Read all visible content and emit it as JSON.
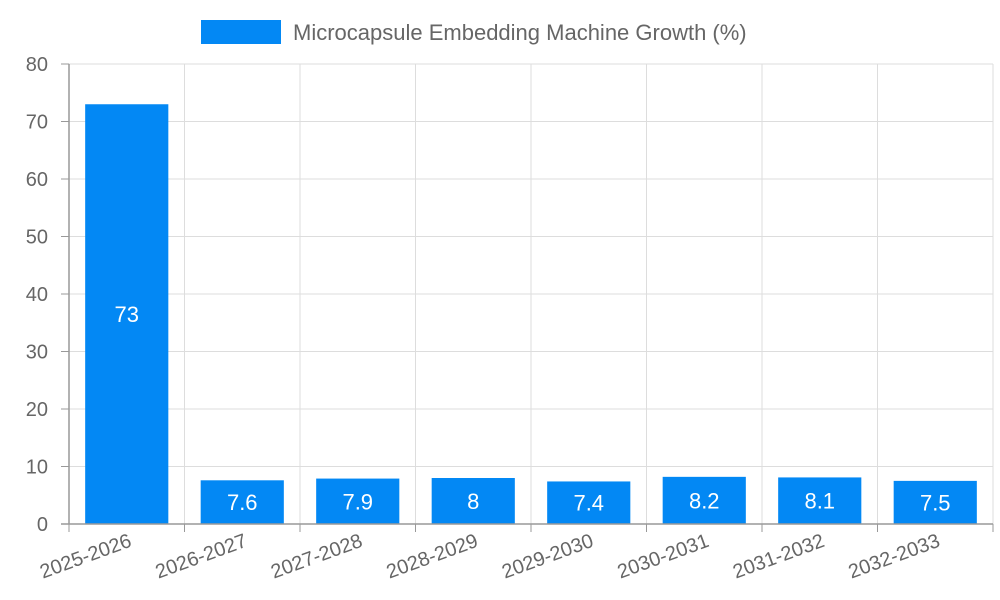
{
  "chart_data": {
    "type": "bar",
    "categories": [
      "2025-2026",
      "2026-2027",
      "2027-2028",
      "2028-2029",
      "2029-2030",
      "2030-2031",
      "2031-2032",
      "2032-2033"
    ],
    "series": [
      {
        "name": "Microcapsule Embedding Machine Growth (%)",
        "values": [
          73,
          7.6,
          7.9,
          8,
          7.4,
          8.2,
          8.1,
          7.5
        ],
        "color": "#0388f4"
      }
    ],
    "value_labels": [
      "73",
      "7.6",
      "7.9",
      "8",
      "7.4",
      "8.2",
      "8.1",
      "7.5"
    ],
    "ylim": [
      0,
      80
    ],
    "yticks": [
      "0",
      "10",
      "20",
      "30",
      "40",
      "50",
      "60",
      "70",
      "80"
    ],
    "grid": true,
    "legend_position": "top-center",
    "grid_color": "#dddddd",
    "axis_color": "#999999"
  }
}
